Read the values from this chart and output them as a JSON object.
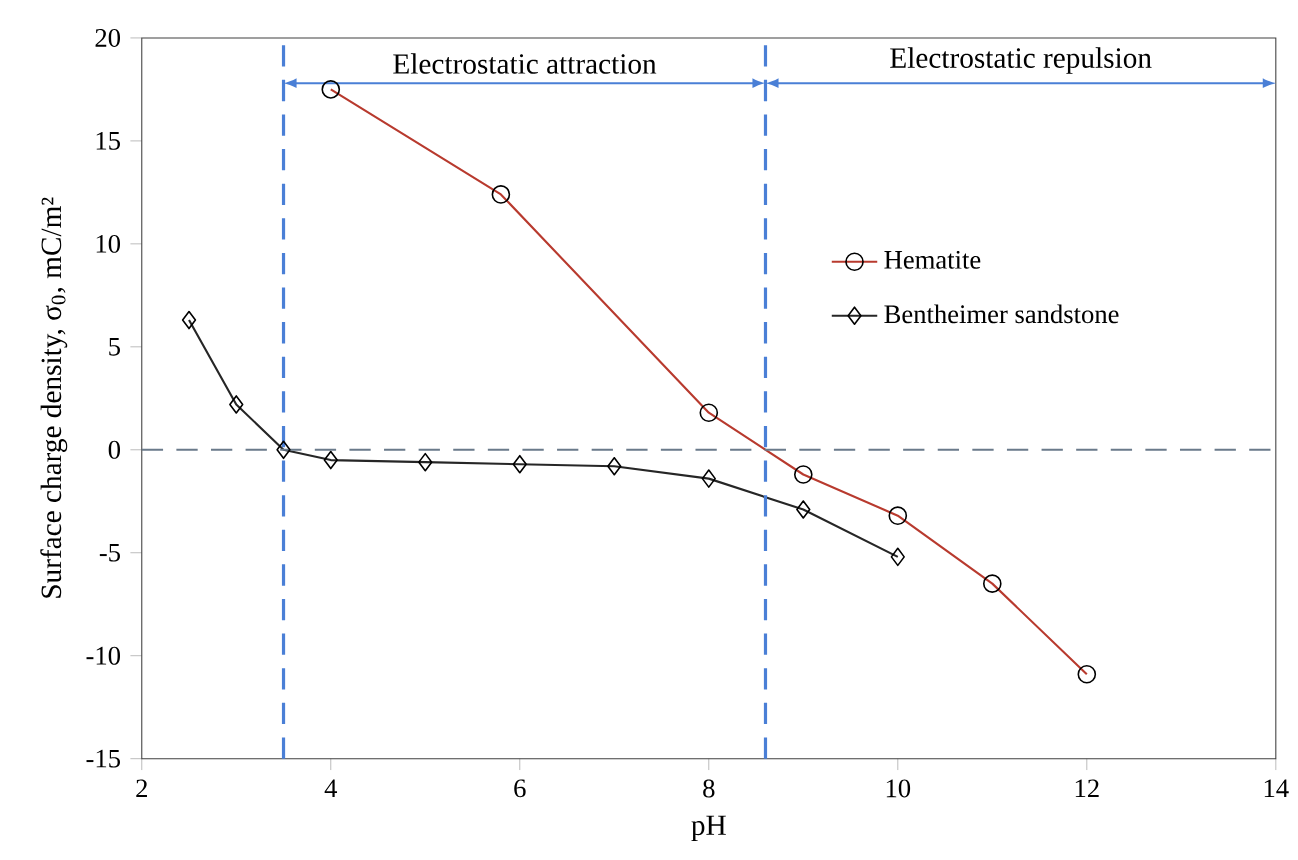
{
  "chart_data": {
    "type": "line",
    "xlabel": "pH",
    "ylabel": "Surface charge density, σ$_{0}$, mC/m²",
    "xlim": [
      2,
      14
    ],
    "xticks": [
      2,
      4,
      6,
      8,
      10,
      12,
      14
    ],
    "ylim": [
      -15,
      20
    ],
    "yticks": [
      -15,
      -10,
      -5,
      0,
      5,
      10,
      15,
      20
    ],
    "series": [
      {
        "name": "Hematite",
        "color": "#b83a2e",
        "x": [
          4,
          5.8,
          8,
          9,
          10,
          11,
          12
        ],
        "values": [
          17.5,
          12.4,
          1.8,
          -1.2,
          -3.2,
          -6.5,
          -10.9
        ],
        "marker": "circle"
      },
      {
        "name": "Bentheimer sandstone",
        "color": "#262626",
        "x": [
          2.5,
          3,
          3.5,
          4,
          5,
          6,
          7,
          8,
          9,
          10
        ],
        "values": [
          6.3,
          2.2,
          0,
          -0.5,
          -0.6,
          -0.7,
          -0.8,
          -1.4,
          -2.9,
          -5.2
        ],
        "marker": "diamond"
      }
    ],
    "ref_lines": [
      {
        "axis": "x",
        "value": 3.5,
        "color": "#4a7fd6",
        "line_style": "dashed"
      },
      {
        "axis": "x",
        "value": 8.6,
        "color": "#4a7fd6",
        "line_style": "dashed"
      },
      {
        "axis": "y",
        "value": 0,
        "color": "#6a7a8a",
        "line_style": "dashed"
      }
    ],
    "annotations": [
      "Electrostatic attraction",
      "Electrostatic repulsion"
    ],
    "legend": "right",
    "grid": false,
    "line_style": "solid"
  }
}
